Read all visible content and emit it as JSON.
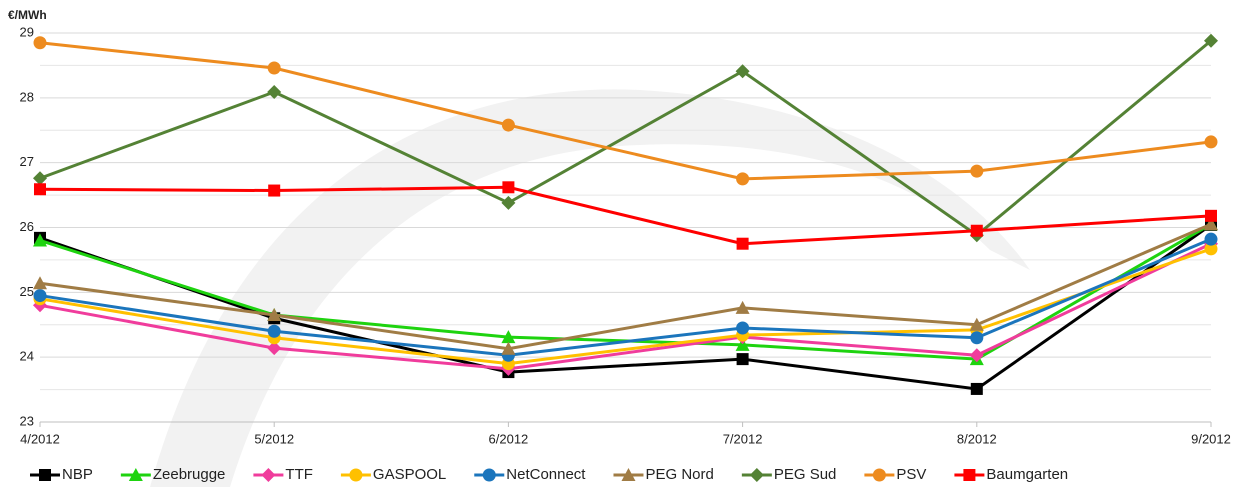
{
  "chart_data": {
    "type": "line",
    "y_label": "€/MWh",
    "categories": [
      "4/2012",
      "5/2012",
      "6/2012",
      "7/2012",
      "8/2012",
      "9/2012"
    ],
    "ylim": [
      23,
      29
    ],
    "yticks": [
      23,
      24,
      25,
      26,
      27,
      28,
      29
    ],
    "minor_yticks": [
      23.5,
      24.5,
      25.5,
      26.5,
      27.5,
      28.5
    ],
    "grid": true,
    "legend": "bottom",
    "series": [
      {
        "name": "NBP",
        "color": "#000000",
        "marker": "square",
        "values": [
          25.84,
          24.6,
          23.77,
          23.97,
          23.51,
          26.04
        ]
      },
      {
        "name": "Zeebrugge",
        "color": "#1ed30f",
        "marker": "triangle",
        "values": [
          25.8,
          24.65,
          24.31,
          24.19,
          23.97,
          26.05
        ]
      },
      {
        "name": "TTF",
        "color": "#f03c9c",
        "marker": "diamond",
        "values": [
          24.8,
          24.14,
          23.82,
          24.31,
          24.03,
          25.75
        ]
      },
      {
        "name": "GASPOOL",
        "color": "#ffc000",
        "marker": "circle",
        "values": [
          24.9,
          24.3,
          23.9,
          24.34,
          24.42,
          25.67
        ]
      },
      {
        "name": "NetConnect",
        "color": "#1b75bc",
        "marker": "circle",
        "values": [
          24.95,
          24.4,
          24.03,
          24.45,
          24.3,
          25.82
        ]
      },
      {
        "name": "PEG Nord",
        "color": "#a07c45",
        "marker": "triangle",
        "values": [
          25.14,
          24.65,
          24.13,
          24.76,
          24.5,
          26.05
        ]
      },
      {
        "name": "PEG Sud",
        "color": "#548235",
        "marker": "diamond",
        "values": [
          26.76,
          28.09,
          26.38,
          28.41,
          25.88,
          28.88
        ]
      },
      {
        "name": "PSV",
        "color": "#ed8b1f",
        "marker": "circle",
        "values": [
          28.85,
          28.46,
          27.58,
          26.75,
          26.87,
          27.32
        ]
      },
      {
        "name": "Baumgarten",
        "color": "#ff0000",
        "marker": "square",
        "values": [
          26.59,
          26.57,
          26.62,
          25.75,
          25.95,
          26.18
        ]
      }
    ]
  }
}
